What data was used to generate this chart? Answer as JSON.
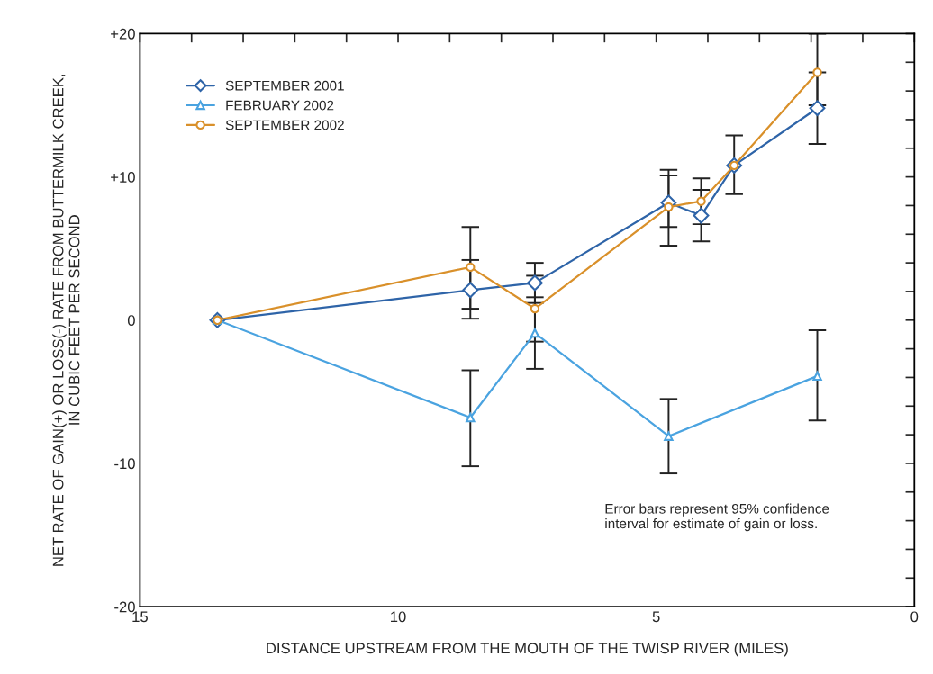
{
  "chart_data": {
    "type": "line",
    "xlabel": "DISTANCE UPSTREAM FROM THE MOUTH OF THE TWISP RIVER (MILES)",
    "ylabel": "NET RATE OF GAIN(+) OR LOSS(-) RATE FROM BUTTERMILK CREEK,\nIN CUBIC FEET PER SECOND",
    "x": [
      13.5,
      8.6,
      7.35,
      4.76,
      4.13,
      3.49,
      1.88
    ],
    "series": [
      {
        "name": "SEPTEMBER 2001",
        "color": "#2e64a8",
        "marker": "diamond",
        "values": [
          0,
          2.1,
          2.6,
          8.2,
          7.3,
          10.8,
          14.8
        ],
        "errors": [
          null,
          [
            0.1,
            4.2
          ],
          [
            1.2,
            4.0
          ],
          [
            6.5,
            10.1
          ],
          [
            5.5,
            9.1
          ],
          [
            8.8,
            12.9
          ],
          [
            12.3,
            17.3
          ]
        ]
      },
      {
        "name": "FEBRUARY 2002",
        "color": "#4aa3e0",
        "marker": "triangle",
        "values": [
          0,
          -6.8,
          -0.9,
          -8.1,
          null,
          null,
          -3.9
        ],
        "errors": [
          null,
          [
            -10.2,
            -3.5
          ],
          [
            -3.4,
            1.6
          ],
          [
            -10.7,
            -5.5
          ],
          null,
          null,
          [
            -7.0,
            -0.7
          ]
        ]
      },
      {
        "name": "SEPTEMBER 2002",
        "color": "#d9902a",
        "marker": "circle",
        "values": [
          0,
          3.7,
          0.8,
          7.9,
          8.3,
          10.8,
          17.3
        ],
        "errors": [
          null,
          [
            0.8,
            6.5
          ],
          [
            -1.5,
            3.1
          ],
          [
            5.2,
            10.5
          ],
          [
            6.7,
            9.9
          ],
          null,
          [
            15.0,
            20
          ]
        ]
      }
    ],
    "xlim": [
      15,
      0
    ],
    "ylim": [
      -20,
      20
    ],
    "xticks": [
      15,
      {
        "value": 14,
        "label": null
      },
      {
        "value": 13,
        "label": null
      },
      {
        "value": 12,
        "label": null
      },
      {
        "value": 11,
        "label": null
      },
      10,
      {
        "value": 9,
        "label": null
      },
      {
        "value": 8,
        "label": null
      },
      {
        "value": 7,
        "label": null
      },
      {
        "value": 6,
        "label": null
      },
      5,
      {
        "value": 4,
        "label": null
      },
      {
        "value": 3,
        "label": null
      },
      {
        "value": 2,
        "label": null
      },
      {
        "value": 1,
        "label": null
      },
      0
    ],
    "yticks": [
      -20,
      {
        "value": -18,
        "label": null
      },
      {
        "value": -16,
        "label": null
      },
      {
        "value": -14,
        "label": null
      },
      {
        "value": -12,
        "label": null
      },
      -10,
      {
        "value": -8,
        "label": null
      },
      {
        "value": -6,
        "label": null
      },
      {
        "value": -4,
        "label": null
      },
      {
        "value": -2,
        "label": null
      },
      0,
      {
        "value": 2,
        "label": null
      },
      {
        "value": 4,
        "label": null
      },
      {
        "value": 6,
        "label": null
      },
      {
        "value": 8,
        "label": null
      },
      {
        "value": 10,
        "label": "+10"
      },
      {
        "value": 12,
        "label": null
      },
      {
        "value": 14,
        "label": null
      },
      {
        "value": 16,
        "label": null
      },
      {
        "value": 18,
        "label": null
      },
      {
        "value": 20,
        "label": "+20"
      }
    ],
    "annotations": [
      "Error bars represent 95% confidence\ninterval for estimate of gain or loss."
    ],
    "legend": "top left",
    "grid": false
  }
}
